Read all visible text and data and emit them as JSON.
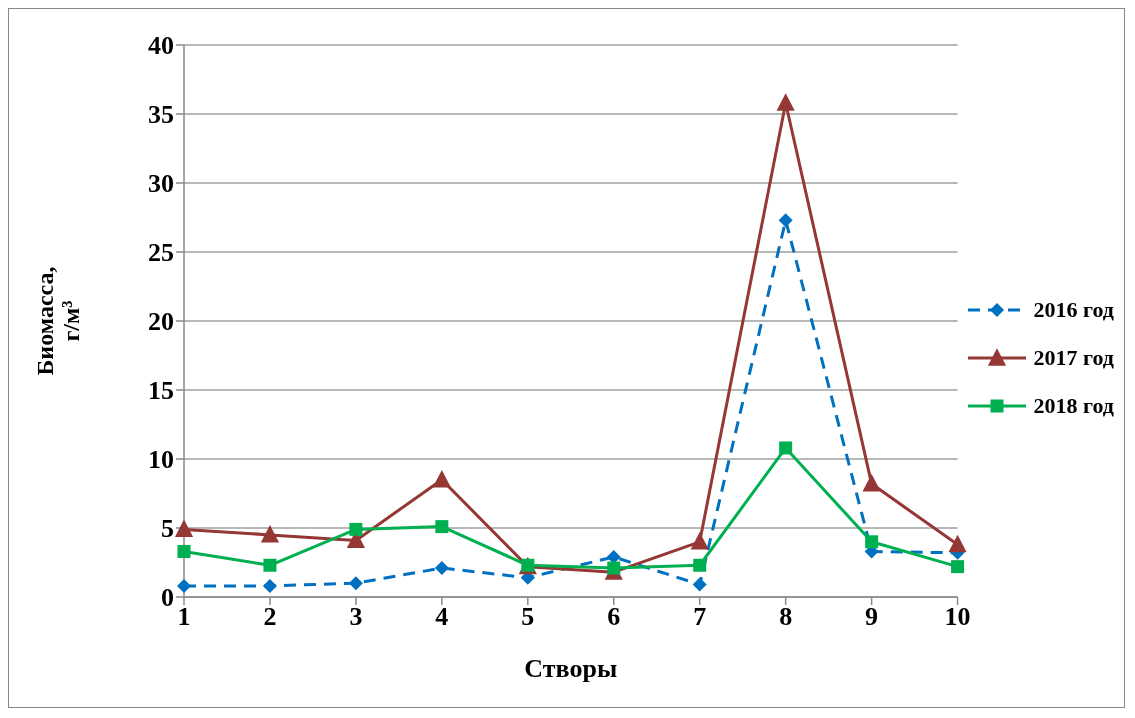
{
  "chart_data": {
    "type": "line",
    "xlabel": "Створы",
    "ylabel": "Биомасса, г/м³",
    "categories": [
      "1",
      "2",
      "3",
      "4",
      "5",
      "6",
      "7",
      "8",
      "9",
      "10"
    ],
    "series": [
      {
        "name": "2016 год",
        "color": "#0070c0",
        "marker": "diamond",
        "line_style": "dashed",
        "values": [
          0.8,
          0.8,
          1.0,
          2.1,
          1.4,
          2.9,
          0.9,
          27.3,
          3.3,
          3.2
        ]
      },
      {
        "name": "2017 год",
        "color": "#953735",
        "marker": "triangle",
        "line_style": "solid",
        "values": [
          4.9,
          4.5,
          4.1,
          8.5,
          2.2,
          1.8,
          4.0,
          35.8,
          8.2,
          3.8
        ]
      },
      {
        "name": "2018 год",
        "color": "#00b050",
        "marker": "square",
        "line_style": "solid",
        "values": [
          3.3,
          2.3,
          4.9,
          5.1,
          2.3,
          2.1,
          2.3,
          10.8,
          4.0,
          2.2
        ]
      }
    ],
    "ylim": [
      0,
      40
    ],
    "yticks": [
      0,
      5,
      10,
      15,
      20,
      25,
      30,
      35,
      40
    ],
    "grid": "y",
    "legend": "right"
  }
}
